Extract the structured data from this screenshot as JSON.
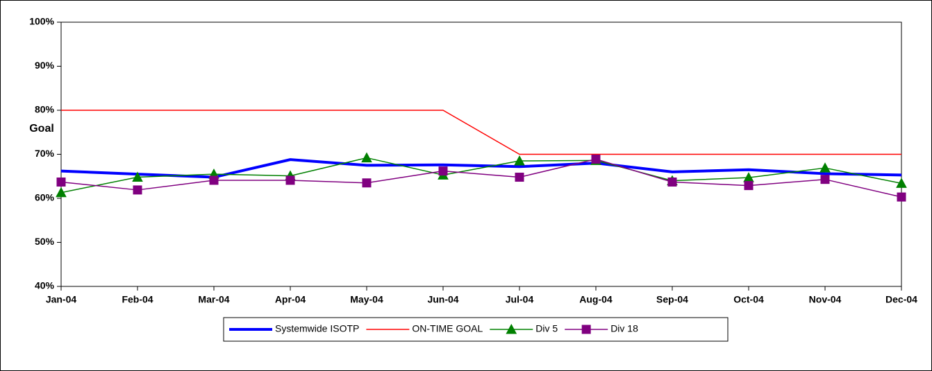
{
  "chart_data": {
    "type": "line",
    "categories": [
      "Jan-04",
      "Feb-04",
      "Mar-04",
      "Apr-04",
      "May-04",
      "Jun-04",
      "Jul-04",
      "Aug-04",
      "Sep-04",
      "Oct-04",
      "Nov-04",
      "Dec-04"
    ],
    "series": [
      {
        "name": "Systemwide ISOTP",
        "color": "#0000ff",
        "line_width": 4,
        "marker": "none",
        "values": [
          66.2,
          65.5,
          64.8,
          68.8,
          67.5,
          67.6,
          67.2,
          68.0,
          66.0,
          66.5,
          65.6,
          65.3
        ]
      },
      {
        "name": "ON-TIME GOAL",
        "color": "#ff0000",
        "line_width": 1.5,
        "marker": "none",
        "values": [
          80,
          80,
          80,
          80,
          80,
          80,
          70,
          70,
          70,
          70,
          70,
          70
        ]
      },
      {
        "name": "Div 5",
        "color": "#008000",
        "line_width": 1.5,
        "marker": "triangle",
        "values": [
          61.3,
          64.8,
          65.5,
          65.1,
          69.2,
          65.3,
          68.5,
          68.6,
          64.0,
          64.7,
          66.9,
          63.4
        ]
      },
      {
        "name": "Div 18",
        "color": "#800080",
        "line_width": 1.5,
        "marker": "square",
        "values": [
          63.7,
          61.9,
          64.1,
          64.1,
          63.5,
          66.2,
          64.8,
          68.9,
          63.7,
          62.9,
          64.3,
          60.3
        ]
      }
    ],
    "ylim": [
      40,
      100
    ],
    "yticks": [
      {
        "value": 40,
        "label": "40%"
      },
      {
        "value": 50,
        "label": "50%"
      },
      {
        "value": 60,
        "label": "60%"
      },
      {
        "value": 70,
        "label": "70%"
      },
      {
        "value": 80,
        "label": "80%"
      },
      {
        "value": 90,
        "label": "90%"
      },
      {
        "value": 100,
        "label": "100%"
      }
    ],
    "annotation": {
      "text": "Goal",
      "color": "#ff0000"
    },
    "grid": false,
    "legend": "bottom"
  }
}
